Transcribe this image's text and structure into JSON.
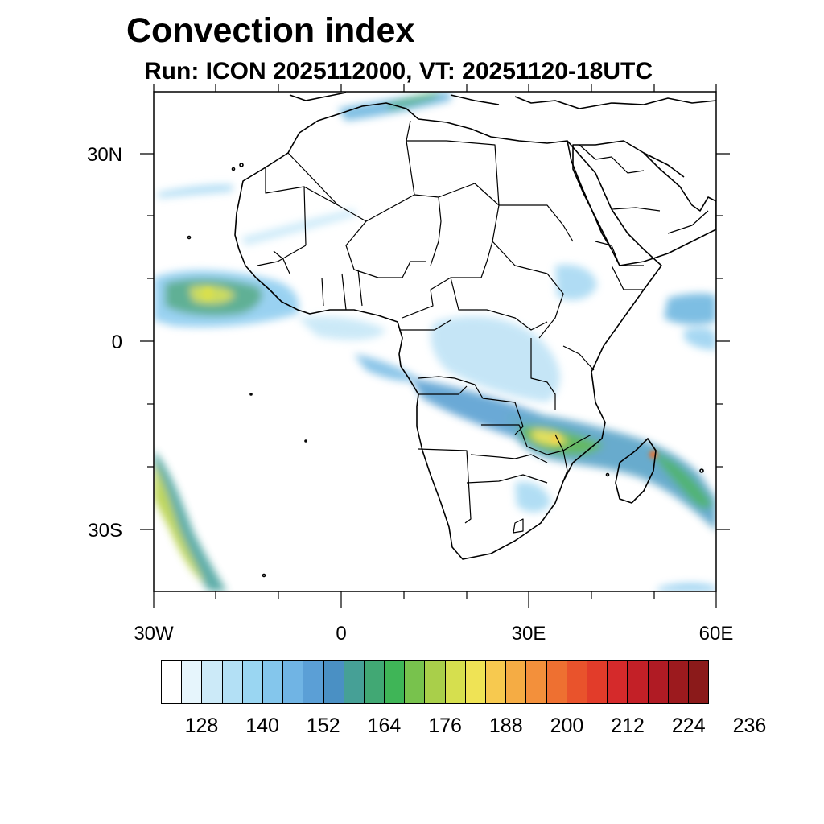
{
  "title": "Convection index",
  "subtitle": "Run: ICON 2025112000,  VT: 20251120-18UTC",
  "map": {
    "lon_range": [
      -30,
      60
    ],
    "lat_range": [
      -40,
      40
    ],
    "lat_ticks": [
      {
        "lat": 30,
        "label": "30N"
      },
      {
        "lat": 0,
        "label": "0"
      },
      {
        "lat": -30,
        "label": "30S"
      }
    ],
    "lon_ticks": [
      {
        "lon": -30,
        "label": "30W"
      },
      {
        "lon": 0,
        "label": "0"
      },
      {
        "lon": 30,
        "label": "30E"
      },
      {
        "lon": 60,
        "label": "60E"
      }
    ]
  },
  "colorbar": {
    "colors": [
      "#ffffff",
      "#e6f5fc",
      "#cceaf8",
      "#b3e0f5",
      "#9ad6f2",
      "#84c6ec",
      "#70b4e4",
      "#5b9fd6",
      "#4a90c4",
      "#46a096",
      "#41a874",
      "#3fb557",
      "#78c24d",
      "#a9cf4a",
      "#d6df4e",
      "#efe355",
      "#f7c94f",
      "#f5ac44",
      "#f3903b",
      "#ee7031",
      "#e9532c",
      "#e23c2a",
      "#d52a2b",
      "#c32027",
      "#b01b24",
      "#9c1a1e",
      "#8b1a1a"
    ],
    "labels": [
      "128",
      "140",
      "152",
      "164",
      "176",
      "188",
      "200",
      "212",
      "224",
      "236"
    ]
  }
}
